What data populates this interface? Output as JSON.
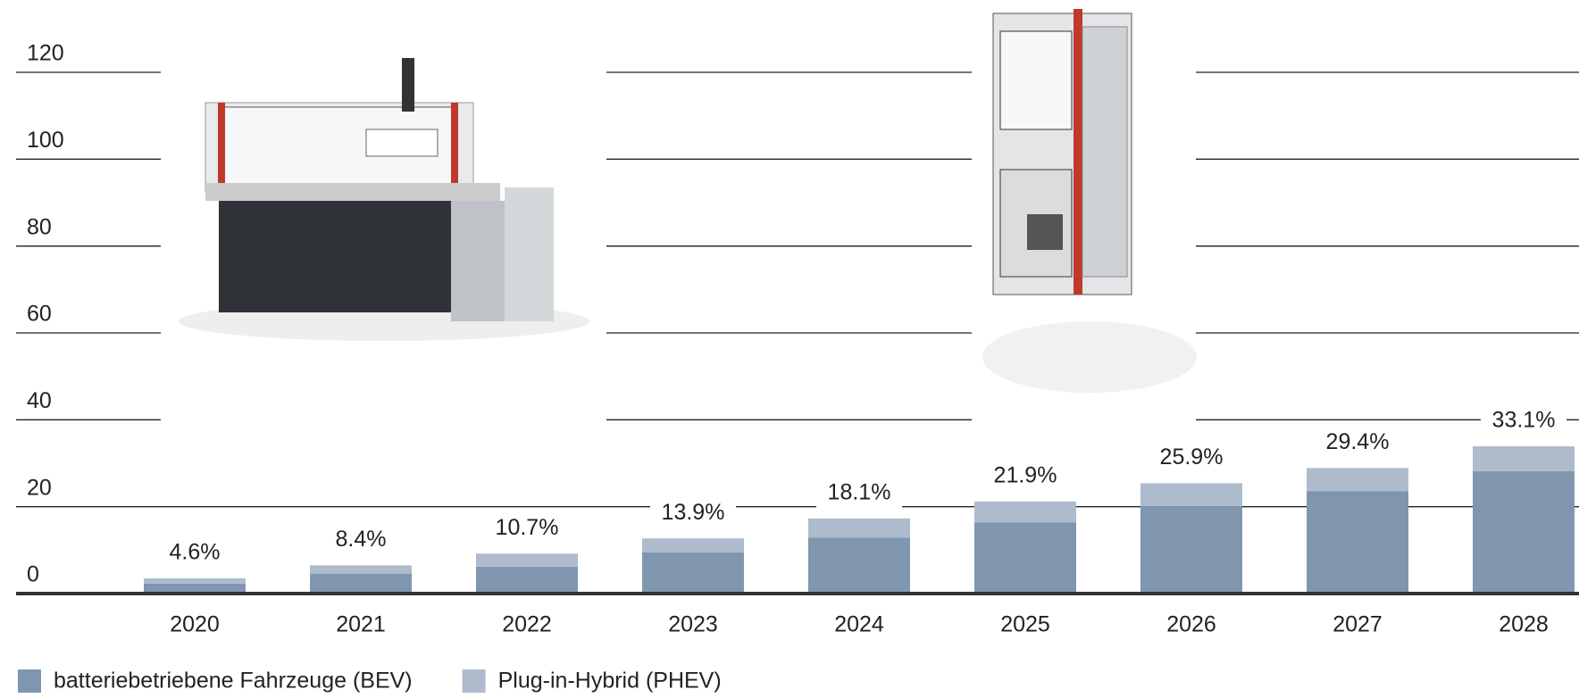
{
  "chart_data": {
    "type": "bar",
    "stacked": true,
    "categories": [
      "2020",
      "2021",
      "2022",
      "2023",
      "2024",
      "2025",
      "2026",
      "2027",
      "2028"
    ],
    "series": [
      {
        "name": "batteriebetriebene Fahrzeuge (BEV)",
        "color": "#7f96ae",
        "values": [
          2.3,
          4.6,
          6.2,
          9.5,
          12.9,
          16.4,
          20.1,
          23.6,
          28.2
        ]
      },
      {
        "name": "Plug-in-Hybrid (PHEV)",
        "color": "#adbbcc",
        "values": [
          1.2,
          1.9,
          3.0,
          3.2,
          4.4,
          4.8,
          5.3,
          5.3,
          5.7
        ]
      }
    ],
    "share_labels": [
      "4.6%",
      "8.4%",
      "10.7%",
      "13.9%",
      "18.1%",
      "21.9%",
      "25.9%",
      "29.4%",
      "33.1%"
    ],
    "ylim": [
      0,
      120
    ],
    "yticks": [
      0,
      20,
      40,
      60,
      80,
      100,
      120
    ],
    "grid": true,
    "legend": "bottom-left"
  }
}
